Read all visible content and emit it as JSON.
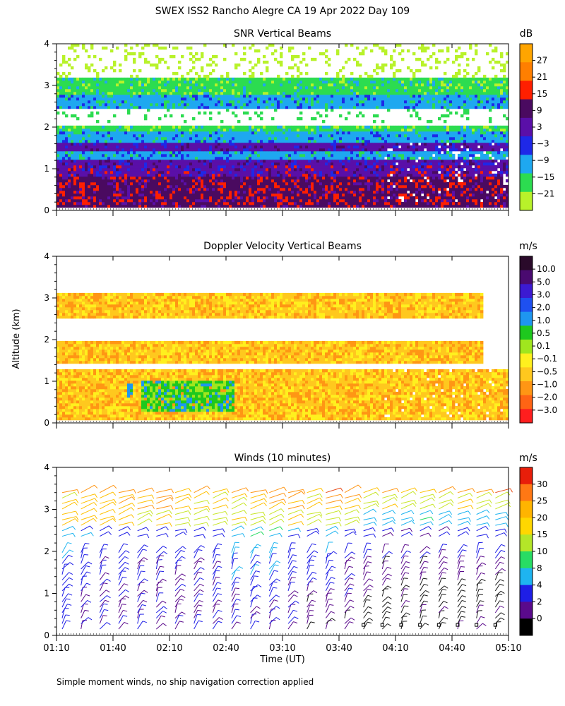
{
  "title": "SWEX ISS2 Rancho Alegre CA  19 Apr 2022 Day 109",
  "ylabel": "Altitude (km)",
  "xlabel": "Time (UT)",
  "footnote": "Simple moment winds, no ship navigation correction applied",
  "x_ticks": [
    "01:10",
    "01:40",
    "02:10",
    "02:40",
    "03:10",
    "03:40",
    "04:10",
    "04:40",
    "05:10"
  ],
  "y_ticks": [
    "0",
    "1",
    "2",
    "3",
    "4"
  ],
  "chart_data": [
    {
      "type": "heatmap",
      "title": "SNR Vertical Beams",
      "xlabel": "Time (UT)",
      "ylabel": "Altitude (km)",
      "xlim": [
        "01:10",
        "05:10"
      ],
      "ylim": [
        0,
        4
      ],
      "colorbar": {
        "unit": "dB",
        "ticks": [
          "27",
          "21",
          "15",
          "9",
          "3",
          "−3",
          "−9",
          "−15",
          "−21"
        ],
        "colors": [
          "#ffa500",
          "#ff7f00",
          "#ff1f00",
          "#4a0a60",
          "#5a0fa8",
          "#1e28e8",
          "#1ea8f0",
          "#2cdc50",
          "#b8f22a"
        ]
      },
      "layers": [
        {
          "altitude_km": [
            0.1,
            0.6
          ],
          "snr_db": 9
        },
        {
          "altitude_km": [
            0.6,
            1.1
          ],
          "snr_db": 9
        },
        {
          "altitude_km": [
            0.8,
            1.2
          ],
          "snr_db": 3
        },
        {
          "altitude_km": [
            1.2,
            1.45
          ],
          "snr_db": -9
        },
        {
          "altitude_km": [
            1.45,
            1.65
          ],
          "snr_db": 3
        },
        {
          "altitude_km": [
            1.65,
            1.9
          ],
          "snr_db": -9
        },
        {
          "altitude_km": [
            1.9,
            2.05
          ],
          "snr_db": -15
        },
        {
          "altitude_km": [
            2.45,
            2.75
          ],
          "snr_db": -9
        },
        {
          "altitude_km": [
            2.75,
            3.2
          ],
          "snr_db": -15
        }
      ]
    },
    {
      "type": "heatmap",
      "title": "Doppler Velocity Vertical Beams",
      "xlabel": "Time (UT)",
      "ylabel": "Altitude (km)",
      "xlim": [
        "01:10",
        "05:10"
      ],
      "ylim": [
        0,
        4
      ],
      "colorbar": {
        "unit": "m/s",
        "ticks": [
          "10.0",
          "5.0",
          "3.0",
          "2.0",
          "1.0",
          "0.5",
          "0.1",
          "−0.1",
          "−0.5",
          "−1.0",
          "−2.0",
          "−3.0"
        ],
        "colors": [
          "#2a0a2a",
          "#4a0a70",
          "#3c1ad2",
          "#1e50f0",
          "#1e96f0",
          "#1ec81e",
          "#a0e61e",
          "#fff01e",
          "#ffc81e",
          "#ff9614",
          "#ff6414",
          "#ff1e1e"
        ]
      },
      "layers": [
        {
          "altitude_km": [
            0.1,
            1.3
          ],
          "velocity_ms": -0.5
        },
        {
          "altitude_km": [
            0.3,
            1.0
          ],
          "velocity_ms": 0.5,
          "time": [
            "01:55",
            "02:45"
          ]
        },
        {
          "altitude_km": [
            0.6,
            0.95
          ],
          "velocity_ms": 1.0,
          "time": [
            "01:47",
            "01:51"
          ]
        },
        {
          "altitude_km": [
            1.4,
            1.95
          ],
          "velocity_ms": -0.5
        },
        {
          "altitude_km": [
            2.5,
            3.1
          ],
          "velocity_ms": -0.5
        }
      ]
    },
    {
      "type": "wind_barbs",
      "title": "Winds (10 minutes)",
      "xlabel": "Time (UT)",
      "ylabel": "Altitude (km)",
      "xlim": [
        "01:10",
        "05:10"
      ],
      "ylim": [
        0,
        4
      ],
      "colorbar": {
        "unit": "m/s",
        "ticks": [
          "30",
          "25",
          "20",
          "15",
          "10",
          "8",
          "4",
          "2",
          "0"
        ],
        "colors": [
          "#e81e0a",
          "#ff7814",
          "#ffb400",
          "#ffd700",
          "#b4e628",
          "#28dc64",
          "#1eb4f0",
          "#1e1ee6",
          "#5a0a8c",
          "#000000"
        ]
      },
      "profiles": [
        {
          "time": "01:10",
          "speeds_ms": [
            8,
            8,
            10,
            12,
            20,
            20,
            22
          ]
        },
        {
          "time": "01:20",
          "speeds_ms": [
            6,
            6,
            8,
            10,
            20,
            22,
            24
          ]
        },
        {
          "time": "01:30",
          "speeds_ms": [
            6,
            6,
            6,
            8,
            20,
            22,
            24
          ]
        },
        {
          "time": "01:40",
          "speeds_ms": [
            6,
            6,
            6,
            8,
            20,
            22,
            24
          ]
        },
        {
          "time": "01:50",
          "speeds_ms": [
            6,
            6,
            6,
            8,
            18,
            22,
            24
          ]
        },
        {
          "time": "02:00",
          "speeds_ms": [
            6,
            6,
            6,
            8,
            18,
            22,
            24
          ]
        },
        {
          "time": "02:10",
          "speeds_ms": [
            6,
            6,
            6,
            8,
            18,
            20,
            22
          ]
        },
        {
          "time": "02:20",
          "speeds_ms": [
            6,
            6,
            6,
            8,
            18,
            20,
            22
          ]
        },
        {
          "time": "02:30",
          "speeds_ms": [
            6,
            6,
            6,
            8,
            18,
            20,
            22
          ]
        },
        {
          "time": "02:40",
          "speeds_ms": [
            6,
            6,
            10,
            12,
            18,
            20,
            22
          ]
        },
        {
          "time": "02:50",
          "speeds_ms": [
            6,
            8,
            10,
            12,
            18,
            22,
            26
          ]
        },
        {
          "time": "03:00",
          "speeds_ms": [
            6,
            8,
            10,
            12,
            18,
            22,
            26
          ]
        },
        {
          "time": "03:10",
          "speeds_ms": [
            6,
            6,
            8,
            10,
            18,
            22,
            24
          ]
        },
        {
          "time": "03:20",
          "speeds_ms": [
            4,
            6,
            8,
            10,
            18,
            20,
            22
          ]
        },
        {
          "time": "03:30",
          "speeds_ms": [
            4,
            6,
            8,
            10,
            18,
            22,
            28
          ]
        },
        {
          "time": "03:40",
          "speeds_ms": [
            4,
            6,
            6,
            8,
            18,
            22,
            26
          ]
        },
        {
          "time": "03:50",
          "speeds_ms": [
            2,
            4,
            4,
            8,
            12,
            18,
            22
          ]
        },
        {
          "time": "04:00",
          "speeds_ms": [
            2,
            2,
            4,
            6,
            12,
            18,
            22
          ]
        },
        {
          "time": "04:10",
          "speeds_ms": [
            2,
            2,
            4,
            6,
            12,
            18,
            22
          ]
        },
        {
          "time": "04:20",
          "speeds_ms": [
            2,
            2,
            4,
            6,
            12,
            18,
            22
          ]
        },
        {
          "time": "04:30",
          "speeds_ms": [
            2,
            2,
            4,
            6,
            12,
            18,
            22
          ]
        },
        {
          "time": "04:40",
          "speeds_ms": [
            2,
            2,
            4,
            8,
            12,
            18,
            26
          ]
        },
        {
          "time": "04:50",
          "speeds_ms": [
            2,
            2,
            4,
            8,
            12,
            18,
            26
          ]
        },
        {
          "time": "05:00",
          "speeds_ms": [
            2,
            2,
            4,
            8,
            12,
            18,
            26
          ]
        }
      ]
    }
  ]
}
